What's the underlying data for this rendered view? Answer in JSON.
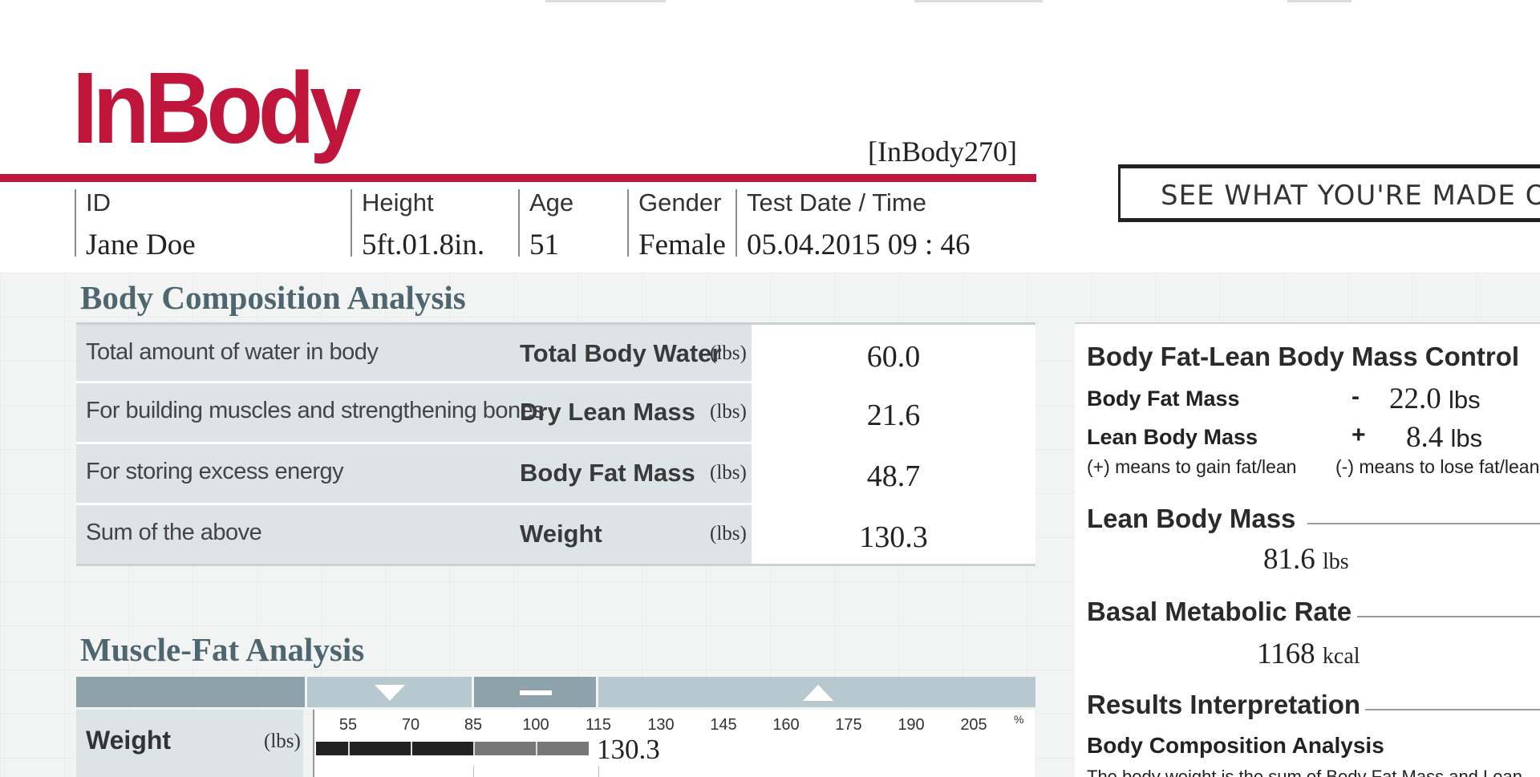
{
  "header": {
    "logo_text": "InBody",
    "model": "[InBody270]",
    "tagline": "SEE WHAT YOU'RE MADE OF"
  },
  "info": {
    "id_label": "ID",
    "id_value": "Jane Doe",
    "height_label": "Height",
    "height_value": "5ft.01.8in.",
    "age_label": "Age",
    "age_value": "51",
    "gender_label": "Gender",
    "gender_value": "Female",
    "date_label": "Test  Date / Time",
    "date_value": "05.04.2015  09 : 46"
  },
  "bca": {
    "title": "Body Composition Analysis",
    "rows": [
      {
        "desc": "Total amount of water in body",
        "name": "Total Body Water",
        "unit": "(lbs)",
        "value": "60.0"
      },
      {
        "desc": "For building muscles and strengthening bones",
        "name": "Dry Lean Mass",
        "unit": "(lbs)",
        "value": "21.6"
      },
      {
        "desc": "For storing excess energy",
        "name": "Body Fat Mass",
        "unit": "(lbs)",
        "value": "48.7"
      },
      {
        "desc": "Sum of the above",
        "name": "Weight",
        "unit": "(lbs)",
        "value": "130.3"
      }
    ]
  },
  "mfa": {
    "title": "Muscle-Fat Analysis",
    "row_name": "Weight",
    "row_unit": "(lbs)",
    "ticks": [
      "55",
      "70",
      "85",
      "100",
      "115",
      "130",
      "145",
      "160",
      "175",
      "190",
      "205"
    ],
    "percent": "%",
    "value": "130.3"
  },
  "right": {
    "control_title": "Body Fat-Lean Body Mass Control",
    "bfm_label": "Body Fat Mass",
    "bfm_sign": "-",
    "bfm_value": "22.0",
    "lbm_label": "Lean Body Mass",
    "lbm_sign": "+",
    "lbm_value": "8.4",
    "unit_lbs": "lbs",
    "note_plus": "(+) means to gain fat/lean",
    "note_minus": "(-) means to lose fat/lean",
    "lbm_title": "Lean Body Mass",
    "lbm_total": "81.6",
    "lbm_total_unit": "lbs",
    "bmr_title": "Basal Metabolic Rate",
    "bmr_value": "1168",
    "bmr_unit": "kcal",
    "interp_title": "Results Interpretation",
    "interp_sub": "Body Composition Analysis",
    "interp_body": "The body weight is the sum of Body Fat Mass and Lean"
  },
  "colors": {
    "brand_red": "#c0163c",
    "section_title": "#4d6670",
    "row_bg": "#dde4e7"
  }
}
